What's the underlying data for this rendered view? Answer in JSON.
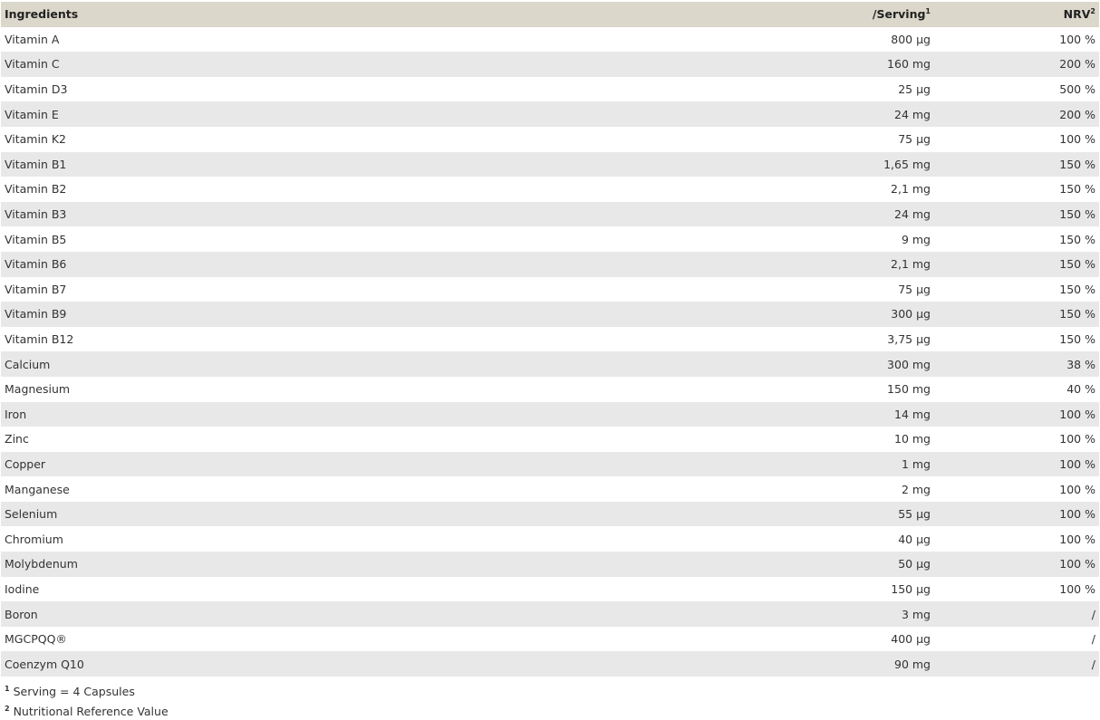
{
  "header": {
    "ingredients": "Ingredients",
    "serving": "/Serving",
    "serving_sup": "1",
    "nrv": "NRV",
    "nrv_sup": "2"
  },
  "rows": [
    [
      "Vitamin A",
      "800 µg",
      "100 %"
    ],
    [
      "Vitamin C",
      "160 mg",
      "200 %"
    ],
    [
      "Vitamin D3",
      "25 µg",
      "500 %"
    ],
    [
      "Vitamin E",
      "24 mg",
      "200 %"
    ],
    [
      "Vitamin K2",
      "75 µg",
      "100 %"
    ],
    [
      "Vitamin B1",
      "1,65 mg",
      "150 %"
    ],
    [
      "Vitamin B2",
      "2,1 mg",
      "150 %"
    ],
    [
      "Vitamin B3",
      "24 mg",
      "150 %"
    ],
    [
      "Vitamin B5",
      "9 mg",
      "150 %"
    ],
    [
      "Vitamin B6",
      "2,1 mg",
      "150 %"
    ],
    [
      "Vitamin B7",
      "75 µg",
      "150 %"
    ],
    [
      "Vitamin B9",
      "300 µg",
      "150 %"
    ],
    [
      "Vitamin B12",
      "3,75 µg",
      "150 %"
    ],
    [
      "Calcium",
      "300 mg",
      "38 %"
    ],
    [
      "Magnesium",
      "150 mg",
      "40 %"
    ],
    [
      "Iron",
      "14 mg",
      "100 %"
    ],
    [
      "Zinc",
      "10 mg",
      "100 %"
    ],
    [
      "Copper",
      "1 mg",
      "100 %"
    ],
    [
      "Manganese",
      "2 mg",
      "100 %"
    ],
    [
      "Selenium",
      "55 µg",
      "100 %"
    ],
    [
      "Chromium",
      "40 µg",
      "100 %"
    ],
    [
      "Molybdenum",
      "50 µg",
      "100 %"
    ],
    [
      "Iodine",
      "150 µg",
      "100 %"
    ],
    [
      "Boron",
      "3 mg",
      "/"
    ],
    [
      "MGCPQQ®",
      "400 µg",
      "/"
    ],
    [
      "Coenzym Q10",
      "90 mg",
      "/"
    ]
  ],
  "footnotes": [
    {
      "mark": "1",
      "text": "Serving = 4 Capsules"
    },
    {
      "mark": "2",
      "text": "Nutritional Reference Value"
    }
  ],
  "colors": {
    "header_bg": "#dcd7cb",
    "stripe_bg": "#e8e8e8",
    "text": "#333333"
  }
}
